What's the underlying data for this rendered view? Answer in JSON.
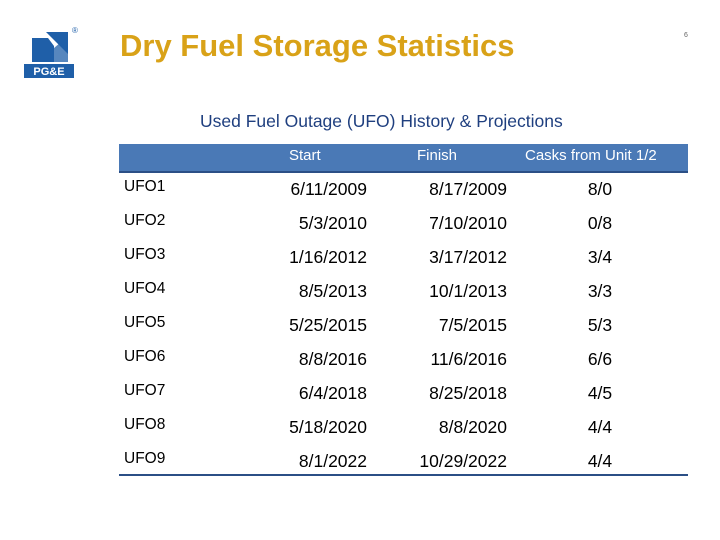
{
  "slide": {
    "title": "Dry Fuel Storage Statistics",
    "page_number": "6",
    "subtitle": "Used Fuel Outage (UFO) History & Projections"
  },
  "logo": {
    "label": "PG&E",
    "registered_mark": "®",
    "color": "#1f5fa8"
  },
  "table": {
    "headers": {
      "start": "Start",
      "finish": "Finish",
      "casks": "Casks from Unit 1/2"
    },
    "rows": [
      {
        "name": "UFO1",
        "start": "6/11/2009",
        "finish": "8/17/2009",
        "casks": "8/0"
      },
      {
        "name": "UFO2",
        "start": "5/3/2010",
        "finish": "7/10/2010",
        "casks": "0/8"
      },
      {
        "name": "UFO3",
        "start": "1/16/2012",
        "finish": "3/17/2012",
        "casks": "3/4"
      },
      {
        "name": "UFO4",
        "start": "8/5/2013",
        "finish": "10/1/2013",
        "casks": "3/3"
      },
      {
        "name": "UFO5",
        "start": "5/25/2015",
        "finish": "7/5/2015",
        "casks": "5/3"
      },
      {
        "name": "UFO6",
        "start": "8/8/2016",
        "finish": "11/6/2016",
        "casks": "6/6"
      },
      {
        "name": "UFO7",
        "start": "6/4/2018",
        "finish": "8/25/2018",
        "casks": "4/5"
      },
      {
        "name": "UFO8",
        "start": "5/18/2020",
        "finish": "8/8/2020",
        "casks": "4/4"
      },
      {
        "name": "UFO9",
        "start": "8/1/2022",
        "finish": "10/29/2022",
        "casks": "4/4"
      }
    ]
  },
  "colors": {
    "title": "#d9a218",
    "subtitle": "#1f3f7f",
    "header_background": "#4a79b6",
    "rule": "#2b4f86"
  }
}
